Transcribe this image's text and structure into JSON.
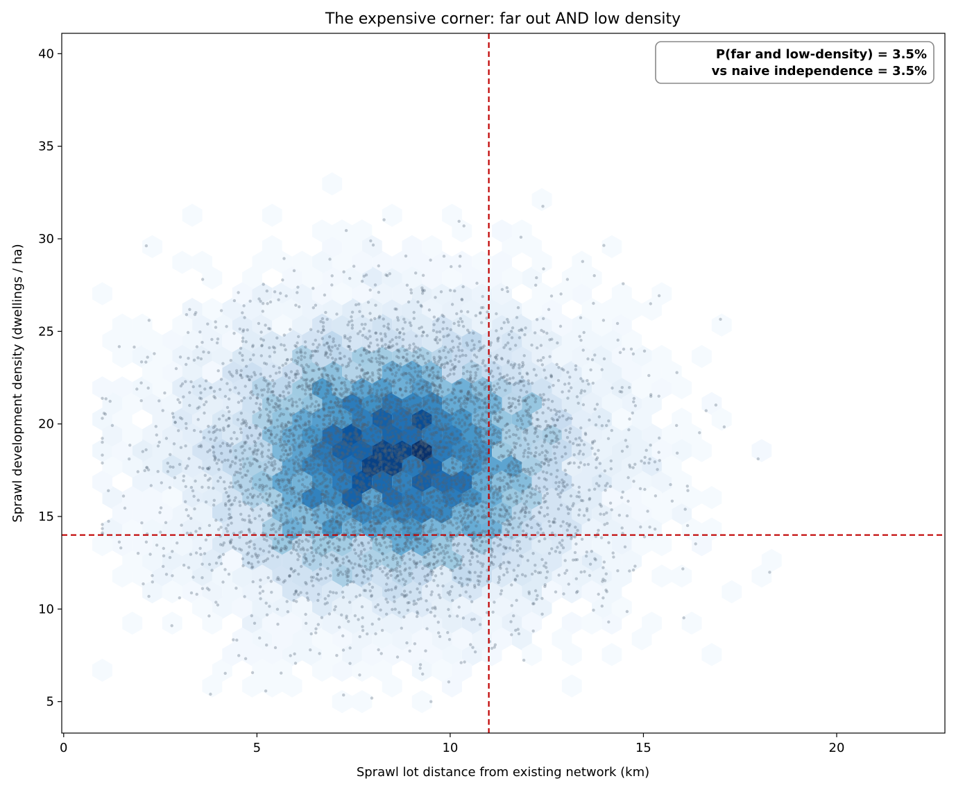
{
  "chart_data": {
    "type": "scatter",
    "subtype": "hexbin-with-scatter-overlay",
    "title": "The expensive corner: far out AND low density",
    "xlabel": "Sprawl lot distance from existing network  (km)",
    "ylabel": "Sprawl development density  (dwellings / ha)",
    "xlim": [
      -0.05,
      22.8
    ],
    "ylim": [
      3.3,
      41.1
    ],
    "xticks": [
      0,
      5,
      10,
      15,
      20
    ],
    "yticks": [
      5,
      10,
      15,
      20,
      25,
      30,
      35,
      40
    ],
    "grid": false,
    "colormap": "Blues",
    "distribution": {
      "x_mean": 8.5,
      "x_sd": 2.6,
      "x_min": 1.0,
      "y_mean": 18.0,
      "y_sd": 3.9,
      "y_min": 5.0
    },
    "thresholds": {
      "x": 11.0,
      "y": 14.0,
      "color": "#c00000",
      "style": "dashed"
    },
    "annotation": {
      "lines": [
        "P(far and low-density) = 3.5%",
        "vs naive independence = 3.5%"
      ],
      "placement": "top-right"
    }
  }
}
